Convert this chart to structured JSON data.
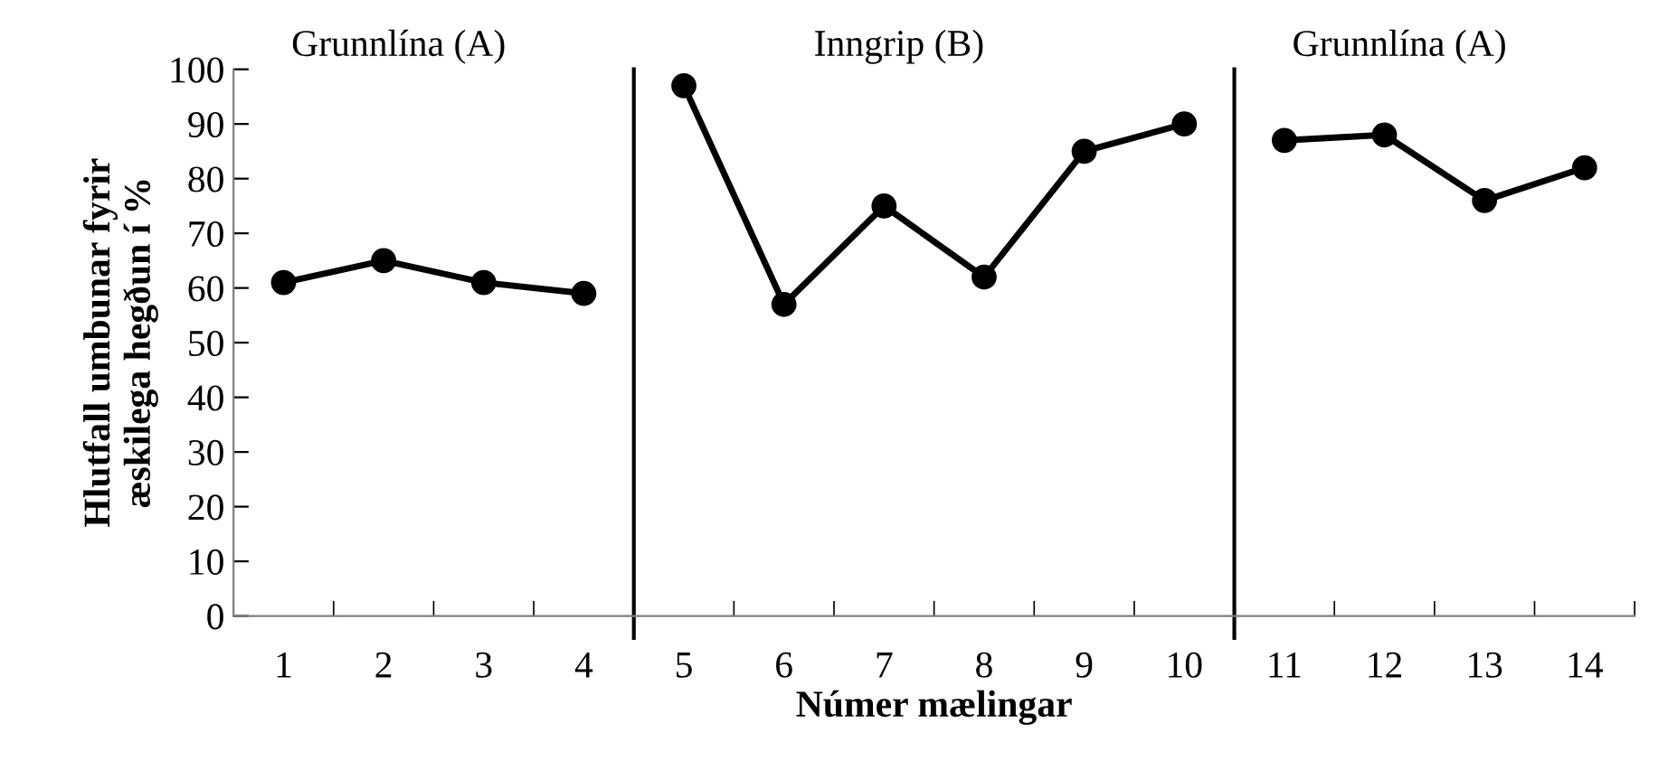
{
  "chart_data": {
    "type": "line",
    "xlabel": "Númer mælingar",
    "ylabel": "Hlutfall umbunar fyrir\næskilega hegðun í %",
    "series": [
      {
        "color": "#000000",
        "x": [
          1,
          2,
          3,
          4
        ],
        "values": [
          61,
          65,
          61,
          59
        ]
      },
      {
        "color": "#000000",
        "x": [
          5,
          6,
          7,
          8,
          9,
          10
        ],
        "values": [
          97,
          57,
          75,
          62,
          85,
          90
        ]
      },
      {
        "color": "#000000",
        "x": [
          11,
          12,
          13,
          14
        ],
        "values": [
          87,
          88,
          76,
          82
        ]
      }
    ],
    "xlim": [
      0.5,
      14.5
    ],
    "xticks": [
      {
        "value": 0.5,
        "label": null
      },
      1,
      {
        "value": 1.5,
        "label": null
      },
      2,
      {
        "value": 2.5,
        "label": null
      },
      3,
      {
        "value": 3.5,
        "label": null
      },
      4,
      {
        "value": 4.5,
        "label": null
      },
      5,
      {
        "value": 5.5,
        "label": null
      },
      6,
      {
        "value": 6.5,
        "label": null
      },
      7,
      {
        "value": 7.5,
        "label": null
      },
      8,
      {
        "value": 8.5,
        "label": null
      },
      9,
      {
        "value": 9.5,
        "label": null
      },
      10,
      {
        "value": 10.5,
        "label": null
      },
      11,
      {
        "value": 11.5,
        "label": null
      },
      12,
      {
        "value": 12.5,
        "label": null
      },
      13,
      {
        "value": 13.5,
        "label": null
      },
      14,
      {
        "value": 14.5,
        "label": null
      }
    ],
    "ylim": [
      0,
      100
    ],
    "yticks": [
      0,
      10,
      20,
      30,
      40,
      50,
      60,
      70,
      80,
      90,
      100
    ],
    "ref_lines": [
      {
        "axis": "x",
        "value": 4.5,
        "color": "#000000"
      },
      {
        "axis": "x",
        "value": 10.5,
        "color": "#000000"
      }
    ],
    "annotations": [
      "Grunnlína (A)",
      "Inngrip (B)",
      "Grunnlína (A)"
    ],
    "marker": "circle",
    "line_style": "solid",
    "grid": false,
    "legend": false
  }
}
